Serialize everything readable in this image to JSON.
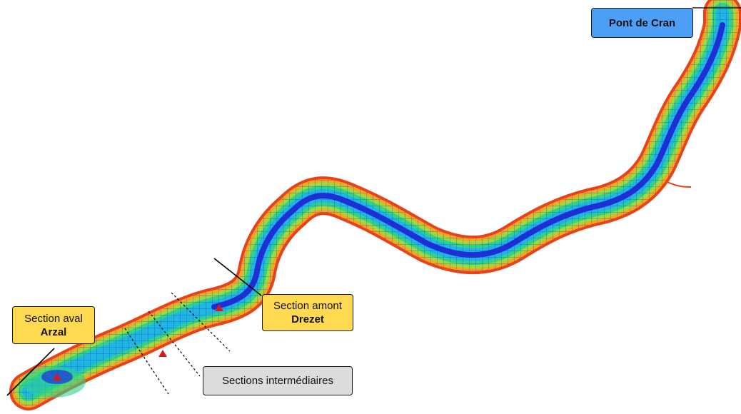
{
  "labels": {
    "pont_de_cran": "Pont de Cran",
    "section_amont_line1": "Section amont",
    "section_amont_line2": "Drezet",
    "section_aval_line1": "Section aval",
    "section_aval_line2": "Arzal",
    "sections_intermediaires": "Sections intermédiaires"
  },
  "colors": {
    "bank": "#e8421b",
    "shallow": "#f5a623",
    "mid_low": "#9fd93a",
    "mid": "#2fd38a",
    "mid_high": "#1fb6e0",
    "channel": "#1f2fd6",
    "callout_yellow": "#ffd94f",
    "callout_blue": "#4d9ff5",
    "callout_grey": "#dcdcdc"
  },
  "markers": [
    {
      "name": "drezet-marker",
      "color": "#d7191c"
    },
    {
      "name": "intermediate-marker",
      "color": "#d7191c"
    },
    {
      "name": "arzal-marker",
      "color": "#d7191c"
    }
  ]
}
